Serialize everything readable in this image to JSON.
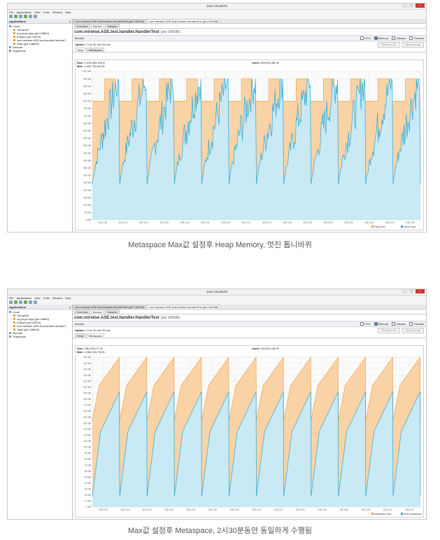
{
  "colors": {
    "orange_fill": "#f9d3a6",
    "orange_line": "#ef9a3e",
    "blue_fill": "#c9e9f4",
    "blue_line": "#27a8d6"
  },
  "app": {
    "title": "Java VisualVM",
    "menu": [
      "File",
      "Applications",
      "View",
      "Tools",
      "Window",
      "Help"
    ],
    "toolbar_icons": [
      "open-icon",
      "add-jmx-icon",
      "heap-dump-icon",
      "snapshot-icon",
      "profiler-icon",
      "settings-icon"
    ]
  },
  "sidebar": {
    "header": "Applications",
    "close_glyph": "×",
    "items": [
      {
        "label": "Local",
        "level": 0
      },
      {
        "label": "VisualVM",
        "level": 1
      },
      {
        "label": "org.jd.gui.App (pid 18860)",
        "level": 1
      },
      {
        "label": "Eclipse (pid 10876)",
        "level": 1
      },
      {
        "label": "com.mirwise.ASE.test.handler.HandlerT",
        "level": 1
      },
      {
        "label": "Jstat (pid 108840)",
        "level": 1
      },
      {
        "label": "Remote",
        "level": 0
      },
      {
        "label": "Snapshots",
        "level": 0
      }
    ]
  },
  "screens": [
    {
      "doc_tabs": [
        "com.mirwise.ASE.test.handler.HandlerTest (pid 192944)",
        "com.mirwise.ASE.test.handler.HandlerTest (pid 184388)"
      ],
      "sub_tabs": [
        "Overview",
        "Monitor",
        "Sampler"
      ],
      "app_title": "com.mirwise.ASE.test.handler.HandlerTest",
      "pid": "(pid 184388)",
      "monitor_label": "Monitor",
      "checks": [
        {
          "label": "CPU",
          "on": false
        },
        {
          "label": "Memory",
          "on": true
        },
        {
          "label": "Classes",
          "on": false
        },
        {
          "label": "Threads",
          "on": false
        }
      ],
      "uptime_label": "Uptime:",
      "uptime": "2 hrs 30 min 34 sec",
      "buttons": [
        "Perform GC",
        "Heap Dump"
      ],
      "panel_tabs": [
        "Heap",
        "Metaspace"
      ],
      "active_panel": 0,
      "stats": {
        "size_label": "Size:",
        "size": "1,013,309,440 B",
        "max_label": "Max:",
        "max": "1,003,781,824 B",
        "used_label": "Used:",
        "used": "509,916,280 B"
      },
      "caption": "Metaspace Max값 설정후 Heap Memory, 멋진 톱니바퀴",
      "chart_data": {
        "type": "area",
        "title": "Heap",
        "series": [
          {
            "name": "Heap size"
          },
          {
            "name": "Used heap"
          }
        ],
        "y_ticks": [
          "0 MB",
          "50 MB",
          "100 MB",
          "150 MB",
          "200 MB",
          "250 MB",
          "300 MB",
          "350 MB",
          "400 MB",
          "450 MB",
          "500 MB",
          "550 MB",
          "600 MB",
          "650 MB",
          "700 MB",
          "750 MB",
          "800 MB",
          "850 MB",
          "900 MB",
          "950 MB",
          "1,000 MB"
        ],
        "x_ticks": [
          "오후 4:00",
          "오후 4:10",
          "오후 4:20",
          "오후 4:30",
          "오후 4:40",
          "오후 4:50",
          "오후 5:00",
          "오후 5:10",
          "오후 5:20",
          "오후 5:30",
          "오후 5:40",
          "오후 5:50",
          "오후 6:00",
          "오후 6:10",
          "오후 6:20",
          "오후 6:30"
        ],
        "ylim": [
          0,
          1000
        ],
        "cycles": 12,
        "heap_size_levels": [
          800,
          950
        ],
        "used_min": 240,
        "used_max": 950,
        "sawtooth": "noisy"
      }
    },
    {
      "doc_tabs": [
        "com.mirwise.ASE.test.handler.HandlerTest (pid 192944)",
        "com.mirwise.ASE.test.handler.HandlerTest (pid 184388)"
      ],
      "sub_tabs": [
        "Overview",
        "Monitor",
        "Sampler"
      ],
      "app_title": "com.mirwise.ASE.test.handler.HandlerTest",
      "pid": "(pid 184388)",
      "monitor_label": "Monitor",
      "checks": [
        {
          "label": "CPU",
          "on": false
        },
        {
          "label": "Memory",
          "on": true
        },
        {
          "label": "Classes",
          "on": false
        },
        {
          "label": "Threads",
          "on": false
        }
      ],
      "uptime_label": "Uptime:",
      "uptime": "2 hrs 30 min 35 sec",
      "buttons": [
        "Perform GC",
        "Heap Dump"
      ],
      "panel_tabs": [
        "Heap",
        "Metaspace"
      ],
      "active_panel": 1,
      "stats": {
        "size_label": "Size:",
        "size": "256,999,272 B",
        "max_label": "Max:",
        "max": "1,086,324,736 B",
        "used_label": "Used:",
        "used": "196,392,240 B"
      },
      "caption": "Max값 설정후 Metaspace, 2시30분동안 동일하게 수행됨",
      "chart_data": {
        "type": "area",
        "title": "Metaspace",
        "series": [
          {
            "name": "Metaspace size"
          },
          {
            "name": "Used Metaspace"
          }
        ],
        "y_ticks": [
          "0 MB",
          "10 MB",
          "20 MB",
          "30 MB",
          "40 MB",
          "50 MB",
          "60 MB",
          "70 MB",
          "80 MB",
          "90 MB",
          "100 MB",
          "110 MB",
          "120 MB",
          "130 MB",
          "140 MB",
          "150 MB",
          "160 MB",
          "170 MB",
          "180 MB",
          "190 MB",
          "200 MB",
          "210 MB",
          "220 MB",
          "230 MB",
          "240 MB",
          "250 MB"
        ],
        "x_ticks": [
          "오후 4:00",
          "오후 4:10",
          "오후 4:20",
          "오후 4:30",
          "오후 4:40",
          "오후 4:50",
          "오후 5:00",
          "오후 5:10",
          "오후 5:20",
          "오후 5:30",
          "오후 5:40",
          "오후 5:50",
          "오후 6:00",
          "오후 6:10",
          "오후 6:20"
        ],
        "ylim": [
          0,
          250
        ],
        "cycles": 12,
        "size_min": 145,
        "size_max": 250,
        "used_min": 18,
        "used_max": 192,
        "sawtooth": "smooth"
      }
    }
  ]
}
